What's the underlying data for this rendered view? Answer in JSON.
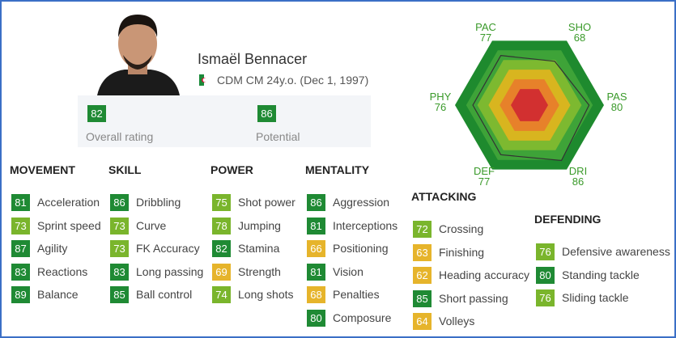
{
  "player": {
    "name": "Ismaël Bennacer",
    "info": "CDM CM 24y.o. (Dec 1, 1997)"
  },
  "ratings": [
    {
      "value": 82,
      "label": "Overall rating"
    },
    {
      "value": 86,
      "label": "Potential"
    }
  ],
  "radar": {
    "rlim": [
      0,
      100
    ],
    "axes": [
      {
        "label": "PAC",
        "value": 77
      },
      {
        "label": "SHO",
        "value": 68
      },
      {
        "label": "PAS",
        "value": 80
      },
      {
        "label": "DRI",
        "value": 86
      },
      {
        "label": "DEF",
        "value": 77
      },
      {
        "label": "PHY",
        "value": 76
      }
    ]
  },
  "groups": [
    {
      "title": "MOVEMENT",
      "stats": [
        {
          "value": 81,
          "name": "Acceleration"
        },
        {
          "value": 73,
          "name": "Sprint speed"
        },
        {
          "value": 87,
          "name": "Agility"
        },
        {
          "value": 83,
          "name": "Reactions"
        },
        {
          "value": 89,
          "name": "Balance"
        }
      ]
    },
    {
      "title": "SKILL",
      "stats": [
        {
          "value": 86,
          "name": "Dribbling"
        },
        {
          "value": 73,
          "name": "Curve"
        },
        {
          "value": 73,
          "name": "FK Accuracy"
        },
        {
          "value": 83,
          "name": "Long passing"
        },
        {
          "value": 85,
          "name": "Ball control"
        }
      ]
    },
    {
      "title": "POWER",
      "stats": [
        {
          "value": 75,
          "name": "Shot power"
        },
        {
          "value": 78,
          "name": "Jumping"
        },
        {
          "value": 82,
          "name": "Stamina"
        },
        {
          "value": 69,
          "name": "Strength"
        },
        {
          "value": 74,
          "name": "Long shots"
        }
      ]
    },
    {
      "title": "MENTALITY",
      "stats": [
        {
          "value": 86,
          "name": "Aggression"
        },
        {
          "value": 81,
          "name": "Interceptions"
        },
        {
          "value": 66,
          "name": "Positioning"
        },
        {
          "value": 81,
          "name": "Vision"
        },
        {
          "value": 68,
          "name": "Penalties"
        },
        {
          "value": 80,
          "name": "Composure"
        }
      ]
    },
    {
      "title": "ATTACKING",
      "stats": [
        {
          "value": 72,
          "name": "Crossing"
        },
        {
          "value": 63,
          "name": "Finishing"
        },
        {
          "value": 62,
          "name": "Heading accuracy"
        },
        {
          "value": 85,
          "name": "Short passing"
        },
        {
          "value": 64,
          "name": "Volleys"
        }
      ]
    },
    {
      "title": "DEFENDING",
      "stats": [
        {
          "value": 76,
          "name": "Defensive awareness"
        },
        {
          "value": 80,
          "name": "Standing tackle"
        },
        {
          "value": 76,
          "name": "Sliding tackle"
        }
      ]
    }
  ]
}
